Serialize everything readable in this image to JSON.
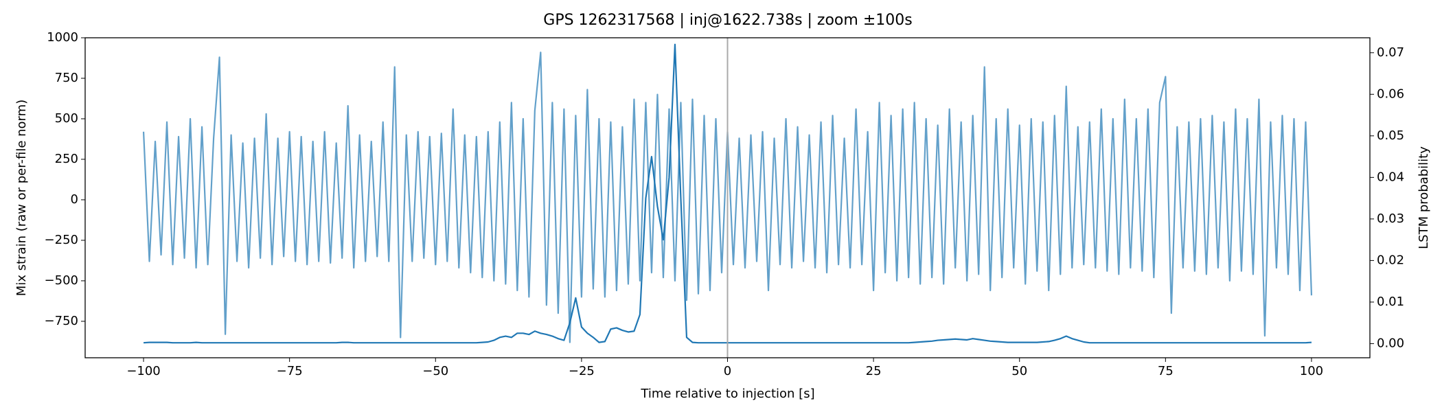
{
  "chart_data": {
    "type": "line",
    "title": "GPS 1262317568 | inj@1622.738s | zoom ±100s",
    "xlabel": "Time relative to injection [s]",
    "ylabel": "Mix strain (raw or per-file norm)",
    "y2label": "LSTM probability",
    "xlim": [
      -110,
      110
    ],
    "ylim": [
      -975,
      1000
    ],
    "y2lim": [
      -0.0034,
      0.0736
    ],
    "xticks": [
      {
        "value": -100,
        "label": "−100"
      },
      {
        "value": -75,
        "label": "−75"
      },
      {
        "value": -50,
        "label": "−50"
      },
      {
        "value": -25,
        "label": "−25"
      },
      0,
      25,
      50,
      75,
      100
    ],
    "yticks": [
      {
        "value": -750,
        "label": "−750"
      },
      {
        "value": -500,
        "label": "−500"
      },
      {
        "value": -250,
        "label": "−250"
      },
      0,
      250,
      500,
      750,
      1000
    ],
    "y2ticks": [
      {
        "value": 0,
        "label": "0.00"
      },
      {
        "value": 0.01,
        "label": "0.01"
      },
      {
        "value": 0.02,
        "label": "0.02"
      },
      {
        "value": 0.03,
        "label": "0.03"
      },
      {
        "value": 0.04,
        "label": "0.04"
      },
      {
        "value": 0.05,
        "label": "0.05"
      },
      {
        "value": 0.06,
        "label": "0.06"
      },
      {
        "value": 0.07,
        "label": "0.07"
      }
    ],
    "vline": 0,
    "vline_color": "#aaaaaa",
    "x": [
      -100,
      -99,
      -98,
      -97,
      -96,
      -95,
      -94,
      -93,
      -92,
      -91,
      -90,
      -89,
      -88,
      -87,
      -86,
      -85,
      -84,
      -83,
      -82,
      -81,
      -80,
      -79,
      -78,
      -77,
      -76,
      -75,
      -74,
      -73,
      -72,
      -71,
      -70,
      -69,
      -68,
      -67,
      -66,
      -65,
      -64,
      -63,
      -62,
      -61,
      -60,
      -59,
      -58,
      -57,
      -56,
      -55,
      -54,
      -53,
      -52,
      -51,
      -50,
      -49,
      -48,
      -47,
      -46,
      -45,
      -44,
      -43,
      -42,
      -41,
      -40,
      -39,
      -38,
      -37,
      -36,
      -35,
      -34,
      -33,
      -32,
      -31,
      -30,
      -29,
      -28,
      -27,
      -26,
      -25,
      -24,
      -23,
      -22,
      -21,
      -20,
      -19,
      -18,
      -17,
      -16,
      -15,
      -14,
      -13,
      -12,
      -11,
      -10,
      -9,
      -8,
      -7,
      -6,
      -5,
      -4,
      -3,
      -2,
      -1,
      0,
      1,
      2,
      3,
      4,
      5,
      6,
      7,
      8,
      9,
      10,
      11,
      12,
      13,
      14,
      15,
      16,
      17,
      18,
      19,
      20,
      21,
      22,
      23,
      24,
      25,
      26,
      27,
      28,
      29,
      30,
      31,
      32,
      33,
      34,
      35,
      36,
      37,
      38,
      39,
      40,
      41,
      42,
      43,
      44,
      45,
      46,
      47,
      48,
      49,
      50,
      51,
      52,
      53,
      54,
      55,
      56,
      57,
      58,
      59,
      60,
      61,
      62,
      63,
      64,
      65,
      66,
      67,
      68,
      69,
      70,
      71,
      72,
      73,
      74,
      75,
      76,
      77,
      78,
      79,
      80,
      81,
      82,
      83,
      84,
      85,
      86,
      87,
      88,
      89,
      90,
      91,
      92,
      93,
      94,
      95,
      96,
      97,
      98,
      99,
      100
    ],
    "series": [
      {
        "color": "#1f77b4",
        "opacity": 0.7,
        "values": [
          420,
          -380,
          360,
          -340,
          480,
          -400,
          390,
          -360,
          500,
          -420,
          450,
          -400,
          380,
          880,
          -830,
          400,
          -380,
          350,
          -420,
          380,
          -360,
          530,
          -400,
          380,
          -350,
          420,
          -380,
          390,
          -400,
          360,
          -380,
          420,
          -390,
          350,
          -360,
          580,
          -420,
          400,
          -380,
          360,
          -350,
          480,
          -380,
          820,
          -850,
          400,
          -380,
          420,
          -360,
          390,
          -400,
          410,
          -380,
          560,
          -420,
          400,
          -450,
          390,
          -480,
          420,
          -500,
          480,
          -520,
          600,
          -560,
          500,
          -600,
          550,
          910,
          -650,
          600,
          -700,
          560,
          -880,
          520,
          -600,
          680,
          -550,
          500,
          -600,
          480,
          -560,
          450,
          -520,
          620,
          -500,
          600,
          -450,
          650,
          -480,
          560,
          -500,
          600,
          -620,
          620,
          -580,
          520,
          -560,
          500,
          -450,
          420,
          -400,
          380,
          -420,
          400,
          -380,
          420,
          -560,
          380,
          -400,
          500,
          -420,
          450,
          -380,
          400,
          -420,
          480,
          -450,
          520,
          -400,
          380,
          -420,
          560,
          -400,
          420,
          -560,
          600,
          -450,
          520,
          -500,
          560,
          -480,
          600,
          -520,
          500,
          -480,
          460,
          -520,
          560,
          -420,
          480,
          -500,
          520,
          -460,
          820,
          -560,
          500,
          -480,
          560,
          -420,
          460,
          -520,
          500,
          -440,
          480,
          -560,
          520,
          -460,
          700,
          -420,
          450,
          -400,
          480,
          -420,
          560,
          -440,
          500,
          -460,
          620,
          -420,
          500,
          -440,
          560,
          -480,
          600,
          760,
          -700,
          450,
          -420,
          480,
          -440,
          500,
          -460,
          520,
          -420,
          480,
          -500,
          560,
          -440,
          500,
          -460,
          620,
          -840,
          480,
          -420,
          520,
          -460,
          500,
          -560,
          480,
          -590
        ]
      },
      {
        "color": "#1f77b4",
        "opacity": 1,
        "axis": "y2",
        "values": [
          0.0002,
          0.0003,
          0.0003,
          0.0003,
          0.0003,
          0.0002,
          0.0002,
          0.0002,
          0.0002,
          0.0003,
          0.0002,
          0.0002,
          0.0002,
          0.0002,
          0.0002,
          0.0002,
          0.0002,
          0.0002,
          0.0002,
          0.0002,
          0.0002,
          0.0002,
          0.0002,
          0.0002,
          0.0002,
          0.0002,
          0.0002,
          0.0002,
          0.0002,
          0.0002,
          0.0002,
          0.0002,
          0.0002,
          0.0002,
          0.0003,
          0.0003,
          0.0002,
          0.0002,
          0.0002,
          0.0002,
          0.0002,
          0.0002,
          0.0002,
          0.0002,
          0.0002,
          0.0002,
          0.0002,
          0.0002,
          0.0002,
          0.0002,
          0.0002,
          0.0002,
          0.0002,
          0.0002,
          0.0002,
          0.0002,
          0.0002,
          0.0002,
          0.0003,
          0.0004,
          0.0008,
          0.0015,
          0.0018,
          0.0015,
          0.0025,
          0.0025,
          0.0022,
          0.003,
          0.0025,
          0.0022,
          0.0018,
          0.0012,
          0.0008,
          0.005,
          0.011,
          0.004,
          0.0025,
          0.0015,
          0.0003,
          0.0005,
          0.0035,
          0.0038,
          0.0032,
          0.0028,
          0.003,
          0.007,
          0.035,
          0.045,
          0.033,
          0.025,
          0.04,
          0.072,
          0.035,
          0.0015,
          0.0003,
          0.0002,
          0.0002,
          0.0002,
          0.0002,
          0.0002,
          0.0002,
          0.0002,
          0.0002,
          0.0002,
          0.0002,
          0.0002,
          0.0002,
          0.0002,
          0.0002,
          0.0002,
          0.0002,
          0.0002,
          0.0002,
          0.0002,
          0.0002,
          0.0002,
          0.0002,
          0.0002,
          0.0002,
          0.0002,
          0.0002,
          0.0002,
          0.0002,
          0.0002,
          0.0002,
          0.0002,
          0.0002,
          0.0002,
          0.0002,
          0.0002,
          0.0002,
          0.0002,
          0.0003,
          0.0004,
          0.0005,
          0.0006,
          0.0008,
          0.0009,
          0.001,
          0.0011,
          0.001,
          0.0009,
          0.0012,
          0.001,
          0.0008,
          0.0006,
          0.0005,
          0.0004,
          0.0003,
          0.0003,
          0.0003,
          0.0003,
          0.0003,
          0.0003,
          0.0004,
          0.0005,
          0.0008,
          0.0012,
          0.0018,
          0.0012,
          0.0008,
          0.0004,
          0.0002,
          0.0002,
          0.0002,
          0.0002,
          0.0002,
          0.0002,
          0.0002,
          0.0002,
          0.0002,
          0.0002,
          0.0002,
          0.0002,
          0.0002,
          0.0002,
          0.0002,
          0.0002,
          0.0002,
          0.0002,
          0.0002,
          0.0002,
          0.0002,
          0.0002,
          0.0002,
          0.0002,
          0.0002,
          0.0002,
          0.0002,
          0.0002,
          0.0002,
          0.0002,
          0.0002,
          0.0002,
          0.0002,
          0.0002,
          0.0002,
          0.0002,
          0.0002,
          0.0002,
          0.0003
        ]
      }
    ]
  }
}
